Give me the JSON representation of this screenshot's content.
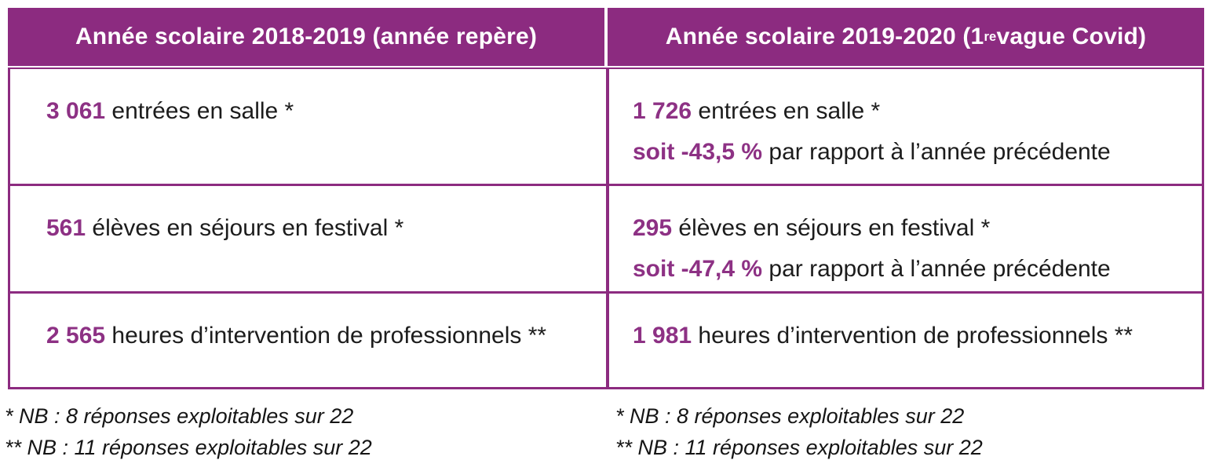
{
  "colors": {
    "accent_purple": "#8c2b80",
    "value_purple": "#8d3184",
    "text_black": "#1c1c1c",
    "header_text": "#ffffff"
  },
  "table": {
    "columns": [
      {
        "header": "Année scolaire 2018-2019 (année repère)",
        "rows": [
          {
            "value": "3 061",
            "label": " entrées en salle *"
          },
          {
            "value": "561",
            "label": " élèves en séjours en festival *"
          },
          {
            "value": "2 565",
            "label": " heures d’intervention de professionnels **"
          }
        ],
        "footnotes": [
          "* NB : 8 réponses exploitables sur 22",
          "** NB : 11 réponses exploitables sur 22"
        ]
      },
      {
        "header_prefix": "Année scolaire 2019-2020 (1",
        "header_sup": "re",
        "header_suffix": " vague Covid)",
        "rows": [
          {
            "value": "1 726",
            "label": " entrées en salle *",
            "delta_value": "soit -43,5 %",
            "delta_label": " par rapport à l’année précédente"
          },
          {
            "value": "295",
            "label": " élèves en séjours en festival *",
            "delta_value": "soit -47,4 %",
            "delta_label": " par rapport à l’année précédente"
          },
          {
            "value": "1 981",
            "label": " heures d’intervention de professionnels **"
          }
        ],
        "footnotes": [
          "* NB : 8 réponses exploitables sur 22",
          "** NB : 11 réponses exploitables sur 22"
        ]
      }
    ]
  }
}
